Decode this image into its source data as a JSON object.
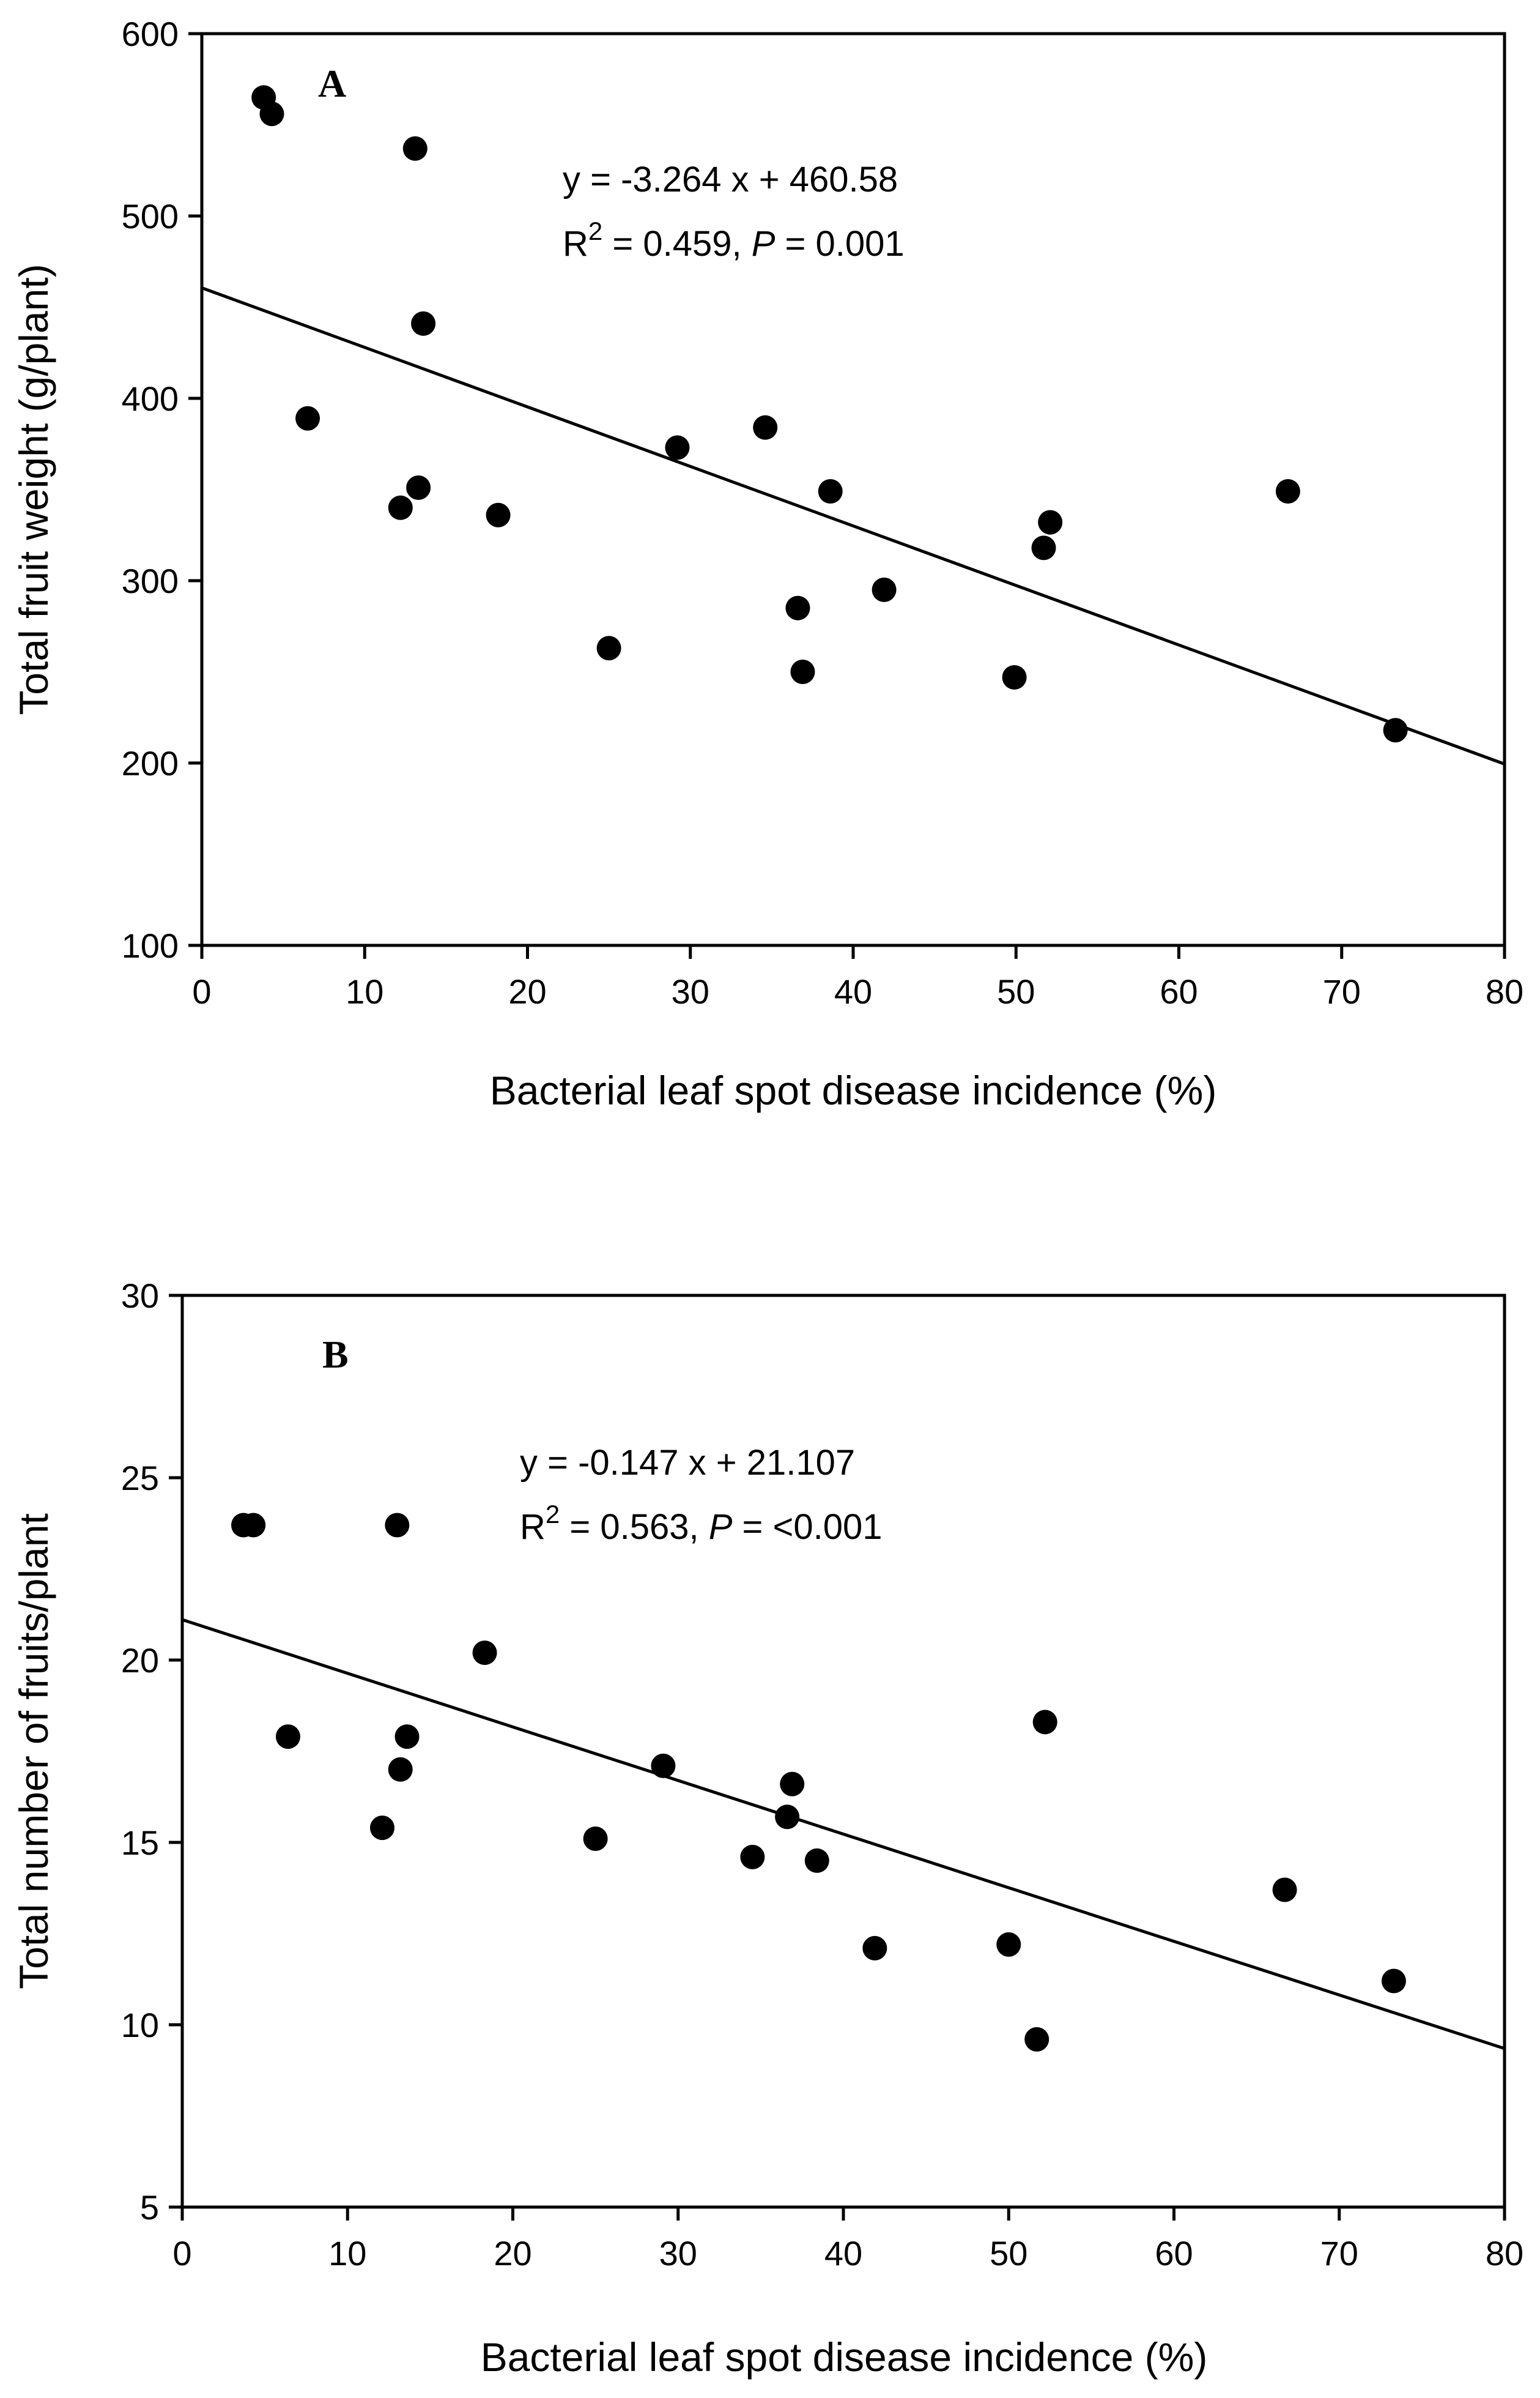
{
  "chart_data": [
    {
      "type": "scatter",
      "panel_label": "A",
      "xlabel": "Bacterial leaf spot disease incidence (%)",
      "ylabel": "Total fruit weight (g/plant)",
      "xlim": [
        0,
        80
      ],
      "ylim": [
        100,
        600
      ],
      "x_ticks": [
        0,
        10,
        20,
        30,
        40,
        50,
        60,
        70,
        80
      ],
      "y_ticks": [
        100,
        200,
        300,
        400,
        500,
        600
      ],
      "grid": false,
      "annotation": {
        "equation": "y = -3.264 x + 460.58",
        "r2_prefix": "R",
        "r2_sup": "2",
        "r2_value": " = 0.459, ",
        "p_label": "P",
        "p_value": " = 0.001"
      },
      "regression": {
        "slope": -3.264,
        "intercept": 460.58
      },
      "points": [
        {
          "x": 3.8,
          "y": 565
        },
        {
          "x": 4.3,
          "y": 556
        },
        {
          "x": 13.1,
          "y": 537
        },
        {
          "x": 13.6,
          "y": 441
        },
        {
          "x": 6.5,
          "y": 389
        },
        {
          "x": 12.2,
          "y": 340
        },
        {
          "x": 13.3,
          "y": 351
        },
        {
          "x": 18.2,
          "y": 336
        },
        {
          "x": 25.0,
          "y": 263
        },
        {
          "x": 29.2,
          "y": 373
        },
        {
          "x": 34.6,
          "y": 384
        },
        {
          "x": 36.6,
          "y": 285
        },
        {
          "x": 36.9,
          "y": 250
        },
        {
          "x": 38.6,
          "y": 349
        },
        {
          "x": 41.9,
          "y": 295
        },
        {
          "x": 49.9,
          "y": 247
        },
        {
          "x": 51.7,
          "y": 318
        },
        {
          "x": 52.1,
          "y": 332
        },
        {
          "x": 66.7,
          "y": 349
        },
        {
          "x": 73.3,
          "y": 218
        }
      ]
    },
    {
      "type": "scatter",
      "panel_label": "B",
      "xlabel": "Bacterial leaf spot disease incidence (%)",
      "ylabel": "Total number of fruits/plant",
      "xlim": [
        0,
        80
      ],
      "ylim": [
        5,
        30
      ],
      "x_ticks": [
        0,
        10,
        20,
        30,
        40,
        50,
        60,
        70,
        80
      ],
      "y_ticks": [
        5,
        10,
        15,
        20,
        25,
        30
      ],
      "grid": false,
      "annotation": {
        "equation": "y = -0.147 x + 21.107",
        "r2_prefix": "R",
        "r2_sup": "2",
        "r2_value": " = 0.563, ",
        "p_label": "P",
        "p_value": " = <0.001"
      },
      "regression": {
        "slope": -0.147,
        "intercept": 21.107
      },
      "points": [
        {
          "x": 3.7,
          "y": 23.7
        },
        {
          "x": 4.3,
          "y": 23.7
        },
        {
          "x": 13.0,
          "y": 23.7
        },
        {
          "x": 18.3,
          "y": 20.2
        },
        {
          "x": 6.4,
          "y": 17.9
        },
        {
          "x": 13.6,
          "y": 17.9
        },
        {
          "x": 13.2,
          "y": 17.0
        },
        {
          "x": 12.1,
          "y": 15.4
        },
        {
          "x": 25.0,
          "y": 15.1
        },
        {
          "x": 29.1,
          "y": 17.1
        },
        {
          "x": 34.5,
          "y": 14.6
        },
        {
          "x": 36.6,
          "y": 15.7
        },
        {
          "x": 36.9,
          "y": 16.6
        },
        {
          "x": 38.4,
          "y": 14.5
        },
        {
          "x": 41.9,
          "y": 12.1
        },
        {
          "x": 50.0,
          "y": 12.2
        },
        {
          "x": 51.7,
          "y": 9.6
        },
        {
          "x": 52.2,
          "y": 18.3
        },
        {
          "x": 66.7,
          "y": 13.7
        },
        {
          "x": 73.3,
          "y": 11.2
        }
      ]
    }
  ]
}
